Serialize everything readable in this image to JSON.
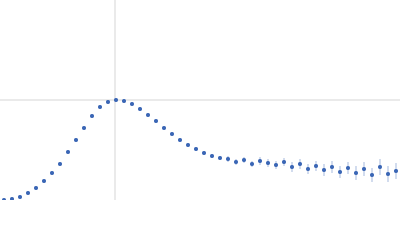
{
  "chart_data": {
    "type": "scatter",
    "x": [
      4,
      12,
      20,
      28,
      36,
      44,
      52,
      60,
      68,
      76,
      84,
      92,
      100,
      108,
      116,
      124,
      132,
      140,
      148,
      156,
      164,
      172,
      180,
      188,
      196,
      204,
      212,
      220,
      228,
      236,
      244,
      252,
      260,
      268,
      276,
      284,
      292,
      300,
      308,
      316,
      324,
      332,
      340,
      348,
      356,
      364,
      372,
      380,
      388,
      396
    ],
    "series": [
      {
        "color": "#3a66b5",
        "values": [
          0.0,
          0.01,
          0.03,
          0.07,
          0.12,
          0.19,
          0.27,
          0.36,
          0.48,
          0.6,
          0.72,
          0.84,
          0.93,
          0.98,
          1.0,
          0.99,
          0.96,
          0.91,
          0.85,
          0.79,
          0.72,
          0.66,
          0.6,
          0.55,
          0.51,
          0.47,
          0.44,
          0.42,
          0.41,
          0.38,
          0.4,
          0.36,
          0.39,
          0.37,
          0.35,
          0.38,
          0.33,
          0.36,
          0.31,
          0.34,
          0.3,
          0.33,
          0.28,
          0.32,
          0.27,
          0.31,
          0.25,
          0.33,
          0.26,
          0.29
        ],
        "errors": [
          0,
          0,
          0,
          0,
          0,
          0,
          0,
          0,
          0,
          0,
          0,
          0,
          0,
          0,
          0,
          0,
          0,
          0,
          0,
          0,
          0.01,
          0.01,
          0.01,
          0.01,
          0.02,
          0.02,
          0.02,
          0.02,
          0.03,
          0.03,
          0.03,
          0.03,
          0.04,
          0.04,
          0.04,
          0.04,
          0.05,
          0.05,
          0.05,
          0.05,
          0.06,
          0.06,
          0.06,
          0.06,
          0.07,
          0.07,
          0.07,
          0.08,
          0.08,
          0.08
        ]
      }
    ],
    "xlim": [
      0,
      400
    ],
    "ylim": [
      0,
      2
    ],
    "xticks": [
      115
    ],
    "yticks": [
      1
    ],
    "grid": true
  }
}
